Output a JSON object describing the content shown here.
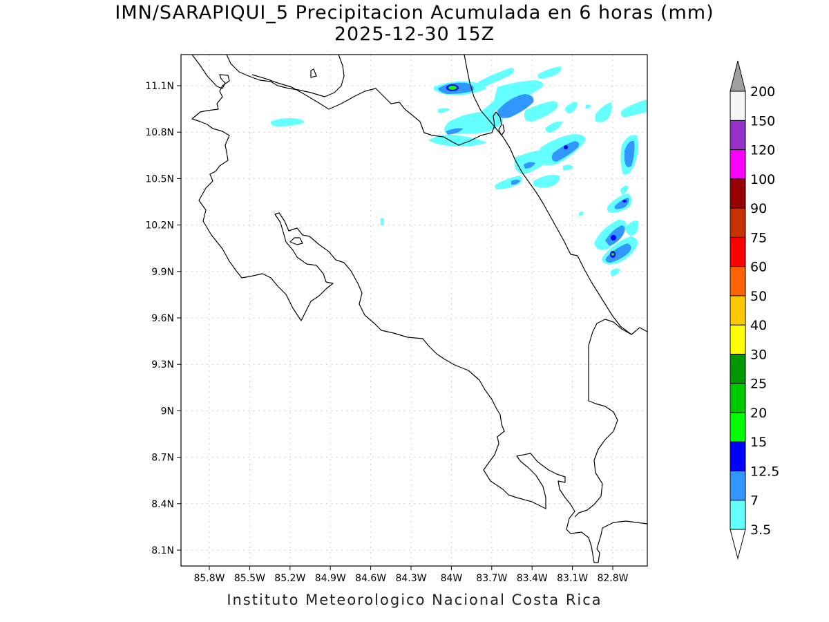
{
  "title": {
    "line1": "IMN/SARAPIQUI_5 Precipitacion Acumulada en 6 horas (mm)",
    "line2": "2025-12-30 15Z"
  },
  "credit": "Instituto Meteorologico Nacional Costa Rica",
  "map": {
    "lat_ticks": [
      "11.1N",
      "10.8N",
      "10.5N",
      "10.2N",
      "9.9N",
      "9.6N",
      "9.3N",
      "9N",
      "8.7N",
      "8.4N",
      "8.1N"
    ],
    "lon_ticks": [
      "85.8W",
      "85.5W",
      "85.2W",
      "84.9W",
      "84.6W",
      "84.3W",
      "84W",
      "83.7W",
      "83.4W",
      "83.1W",
      "82.8W"
    ],
    "grid": true
  },
  "colorbar": {
    "labels": [
      "3.5",
      "7",
      "12.5",
      "15",
      "20",
      "25",
      "30",
      "40",
      "50",
      "60",
      "75",
      "90",
      "100",
      "120",
      "150",
      "200"
    ],
    "colors": [
      "#64ffff",
      "#3296ff",
      "#0000ff",
      "#00ff00",
      "#00c800",
      "#009600",
      "#ffff00",
      "#ffc800",
      "#ff6400",
      "#ff0000",
      "#c83200",
      "#960000",
      "#ff00ff",
      "#9632c8",
      "#f5f5f5",
      "#a0a0a0"
    ]
  },
  "colors": {
    "light_cyan": "#64ffff",
    "medium_blue": "#3296ff",
    "dark_blue": "#0000ff",
    "green": "#00ff00"
  }
}
